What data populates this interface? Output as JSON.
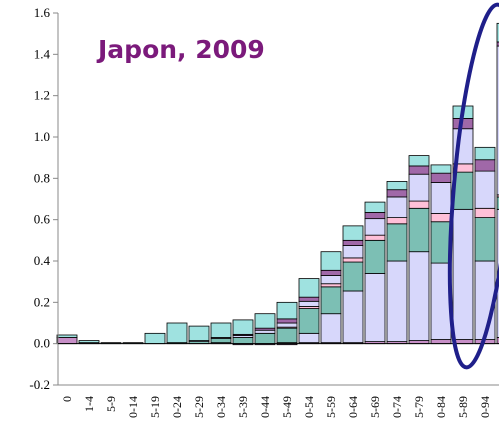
{
  "chart_data": {
    "type": "bar",
    "stacked": true,
    "title": "Japon, 2009",
    "title_color": "#7b1a7b",
    "xlabel": "",
    "ylabel": "",
    "ylim": [
      -0.2,
      1.6
    ],
    "yticks": [
      "-0.2",
      "0.0",
      "0.2",
      "0.4",
      "0.6",
      "0.8",
      "1.0",
      "1.2",
      "1.4",
      "1.6"
    ],
    "grid": false,
    "legend": "none",
    "categories": [
      "0",
      "1-4",
      "5-9",
      "10-14",
      "15-19",
      "20-24",
      "25-29",
      "30-34",
      "35-39",
      "40-44",
      "45-49",
      "50-54",
      "55-59",
      "60-64",
      "65-69",
      "70-74",
      "75-79",
      "80-84",
      "85-89",
      "90-94",
      "95+"
    ],
    "tick_labels": [
      "0",
      "1-4",
      "5-9",
      "0-14",
      "5-19",
      "0-24",
      "5-29",
      "0-34",
      "5-39",
      "0-44",
      "5-49",
      "0-54",
      "5-59",
      "0-64",
      "5-69",
      "0-74",
      "5-79",
      "0-84",
      "5-89",
      "0-94",
      "95+"
    ],
    "series": [
      {
        "color": "#c78fc7",
        "values": [
          0.03,
          0.005,
          0.0,
          0.0,
          0.0,
          0.0,
          0.0,
          0.0,
          -0.005,
          -0.005,
          -0.005,
          0.005,
          0.005,
          0.005,
          0.01,
          0.01,
          0.015,
          0.02,
          0.02,
          0.02,
          0.03
        ]
      },
      {
        "color": "#d7d7fb",
        "values": [
          0.0,
          0.0,
          0.0,
          0.0,
          0.0,
          0.0,
          0.0,
          0.005,
          0.0,
          0.0,
          0.005,
          0.045,
          0.14,
          0.25,
          0.33,
          0.39,
          0.43,
          0.37,
          0.63,
          0.38,
          0.62
        ]
      },
      {
        "color": "#7cbfb4",
        "values": [
          0.0,
          0.0,
          0.0,
          0.0,
          0.0,
          0.005,
          0.01,
          0.02,
          0.03,
          0.05,
          0.07,
          0.12,
          0.13,
          0.14,
          0.16,
          0.18,
          0.21,
          0.2,
          0.18,
          0.21,
          0.06
        ]
      },
      {
        "color": "#ffc0d8",
        "values": [
          0.0,
          0.0,
          0.0,
          0.0,
          0.0,
          0.0,
          0.0,
          0.0,
          0.0,
          0.0,
          0.005,
          0.01,
          0.015,
          0.02,
          0.025,
          0.03,
          0.035,
          0.04,
          0.04,
          0.045,
          0.01
        ]
      },
      {
        "color": "#d7d7fb",
        "values": [
          0.0,
          0.0,
          0.0,
          0.0,
          0.0,
          0.0,
          0.005,
          0.005,
          0.01,
          0.015,
          0.02,
          0.025,
          0.04,
          0.06,
          0.08,
          0.1,
          0.13,
          0.15,
          0.17,
          0.18,
          0.72
        ]
      },
      {
        "color": "#a068a8",
        "values": [
          0.0,
          0.0,
          0.0,
          0.0,
          0.0,
          0.0,
          0.0,
          0.0,
          0.005,
          0.01,
          0.02,
          0.02,
          0.025,
          0.025,
          0.03,
          0.035,
          0.04,
          0.045,
          0.05,
          0.055,
          0.02
        ]
      },
      {
        "color": "#9fe2e0",
        "values": [
          0.012,
          0.01,
          0.005,
          0.005,
          0.05,
          0.095,
          0.07,
          0.07,
          0.07,
          0.07,
          0.08,
          0.09,
          0.09,
          0.07,
          0.05,
          0.04,
          0.05,
          0.04,
          0.06,
          0.06,
          0.09
        ]
      }
    ]
  },
  "highlight_ellipse": {
    "color": "#1f1f8a"
  }
}
